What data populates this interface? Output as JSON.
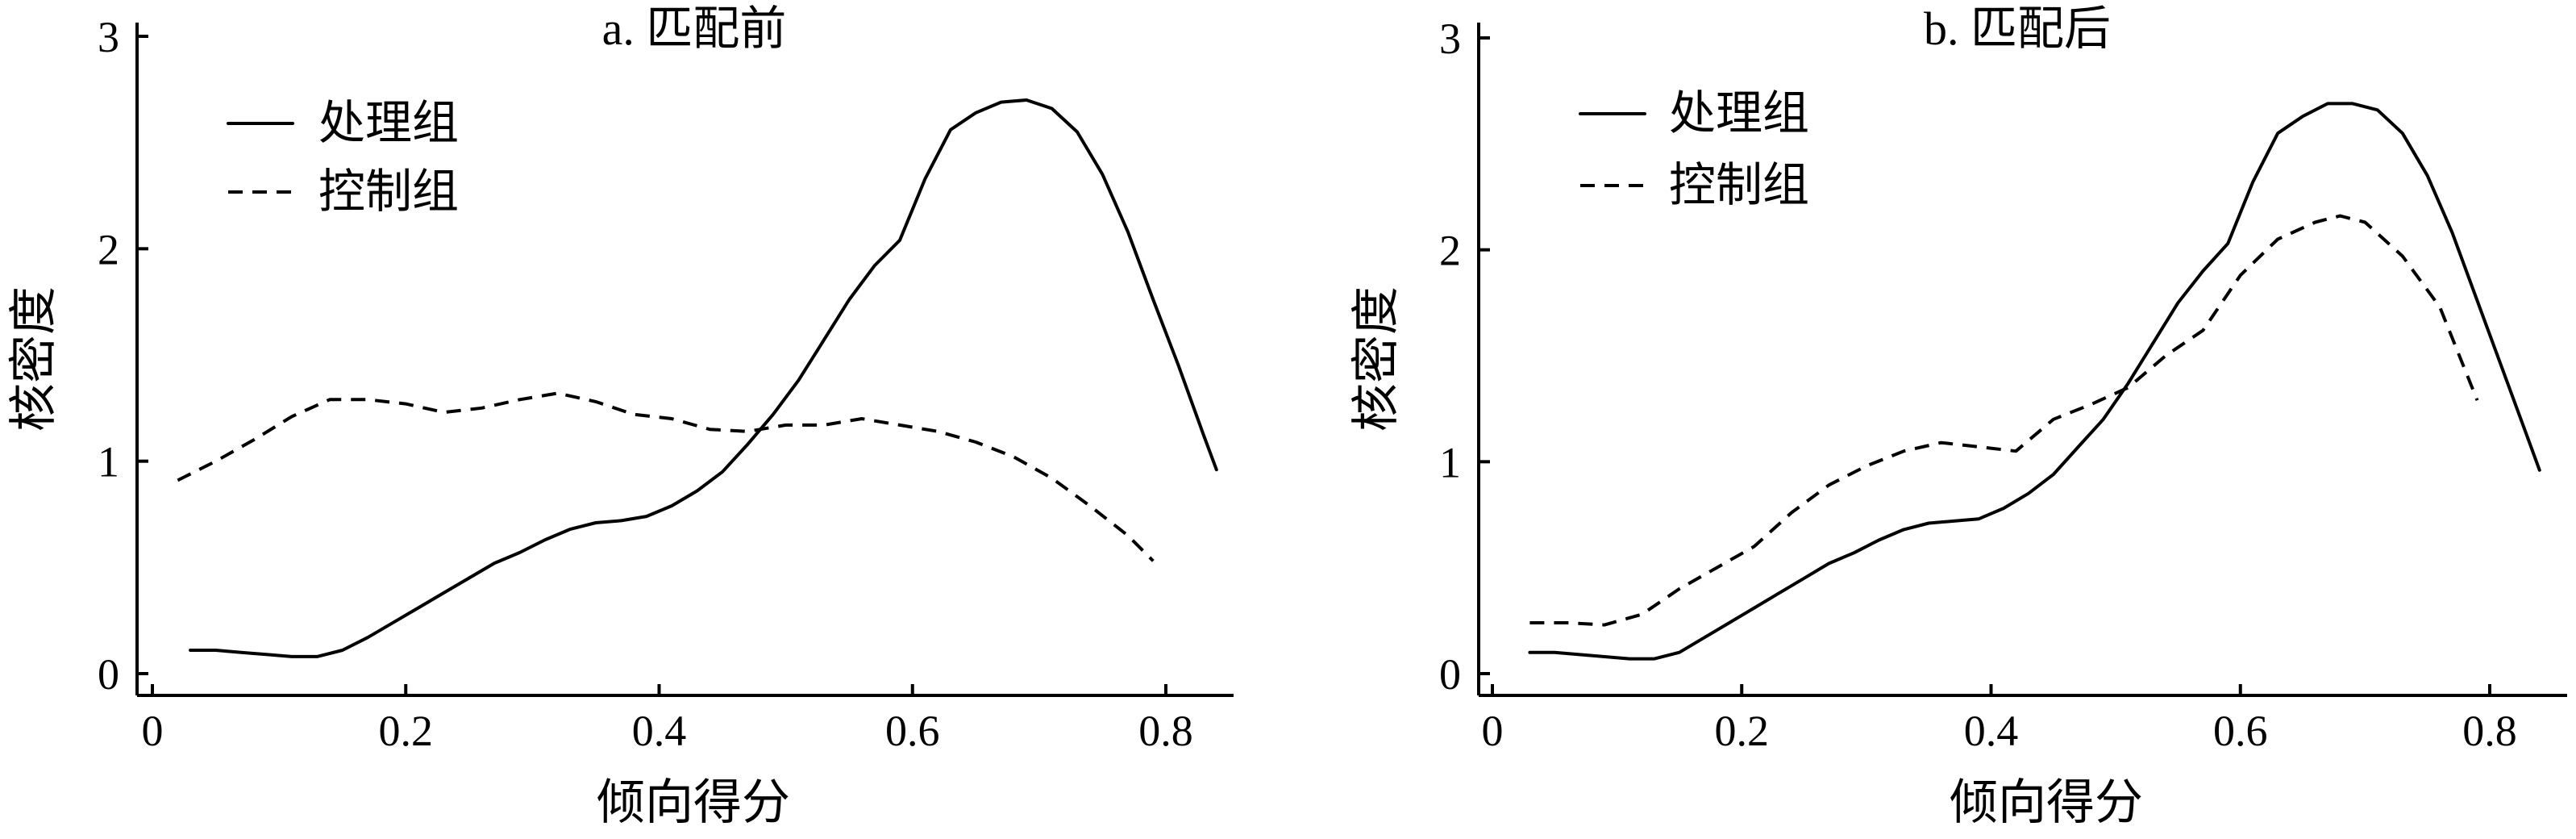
{
  "chart_data": [
    {
      "type": "line",
      "title": "a. 匹配前",
      "xlabel": "倾向得分",
      "ylabel": "核密度",
      "xlim": [
        -0.01,
        0.85
      ],
      "ylim": [
        -0.1,
        3.05
      ],
      "xticks": [
        0,
        0.2,
        0.4,
        0.6,
        0.8
      ],
      "xtick_labels": [
        "0",
        "0.2",
        "0.4",
        "0.6",
        "0.8"
      ],
      "yticks": [
        0,
        1,
        2,
        3
      ],
      "ytick_labels": [
        "0",
        "1",
        "2",
        "3"
      ],
      "legend_position": "top-left",
      "grid": false,
      "series": [
        {
          "name": "处理组",
          "style": "solid",
          "x": [
            0.03,
            0.05,
            0.07,
            0.09,
            0.11,
            0.13,
            0.15,
            0.17,
            0.19,
            0.21,
            0.23,
            0.25,
            0.27,
            0.29,
            0.31,
            0.33,
            0.35,
            0.37,
            0.39,
            0.41,
            0.43,
            0.45,
            0.47,
            0.49,
            0.51,
            0.53,
            0.55,
            0.57,
            0.59,
            0.61,
            0.63,
            0.65,
            0.67,
            0.69,
            0.71,
            0.73,
            0.75,
            0.77,
            0.79,
            0.81,
            0.83,
            0.84
          ],
          "y": [
            0.11,
            0.11,
            0.1,
            0.09,
            0.08,
            0.08,
            0.11,
            0.17,
            0.24,
            0.31,
            0.38,
            0.45,
            0.52,
            0.57,
            0.63,
            0.68,
            0.71,
            0.72,
            0.74,
            0.79,
            0.86,
            0.95,
            1.08,
            1.22,
            1.38,
            1.57,
            1.76,
            1.92,
            2.04,
            2.33,
            2.56,
            2.64,
            2.69,
            2.7,
            2.66,
            2.55,
            2.35,
            2.08,
            1.76,
            1.45,
            1.12,
            0.96
          ]
        },
        {
          "name": "控制组",
          "style": "dashed",
          "x": [
            0.02,
            0.05,
            0.08,
            0.11,
            0.14,
            0.17,
            0.2,
            0.23,
            0.26,
            0.29,
            0.32,
            0.35,
            0.38,
            0.41,
            0.44,
            0.47,
            0.5,
            0.53,
            0.56,
            0.59,
            0.62,
            0.65,
            0.68,
            0.71,
            0.74,
            0.77,
            0.79
          ],
          "y": [
            0.91,
            1.0,
            1.1,
            1.21,
            1.29,
            1.29,
            1.27,
            1.23,
            1.25,
            1.29,
            1.32,
            1.28,
            1.22,
            1.2,
            1.15,
            1.14,
            1.17,
            1.17,
            1.2,
            1.17,
            1.14,
            1.09,
            1.02,
            0.92,
            0.79,
            0.65,
            0.53
          ]
        }
      ]
    },
    {
      "type": "line",
      "title": "b. 匹配后",
      "xlabel": "倾向得分",
      "ylabel": "核密度",
      "xlim": [
        -0.01,
        0.85
      ],
      "ylim": [
        -0.1,
        3.05
      ],
      "xticks": [
        0,
        0.2,
        0.4,
        0.6,
        0.8
      ],
      "xtick_labels": [
        "0",
        "0.2",
        "0.4",
        "0.6",
        "0.8"
      ],
      "yticks": [
        0,
        1,
        2,
        3
      ],
      "ytick_labels": [
        "0",
        "1",
        "2",
        "3"
      ],
      "legend_position": "top-left",
      "grid": false,
      "series": [
        {
          "name": "处理组",
          "style": "solid",
          "x": [
            0.03,
            0.05,
            0.07,
            0.09,
            0.11,
            0.13,
            0.15,
            0.17,
            0.19,
            0.21,
            0.23,
            0.25,
            0.27,
            0.29,
            0.31,
            0.33,
            0.35,
            0.37,
            0.39,
            0.41,
            0.43,
            0.45,
            0.47,
            0.49,
            0.51,
            0.53,
            0.55,
            0.57,
            0.59,
            0.61,
            0.63,
            0.65,
            0.67,
            0.69,
            0.71,
            0.73,
            0.75,
            0.77,
            0.79,
            0.81,
            0.83,
            0.84
          ],
          "y": [
            0.1,
            0.1,
            0.09,
            0.08,
            0.07,
            0.07,
            0.1,
            0.17,
            0.24,
            0.31,
            0.38,
            0.45,
            0.52,
            0.57,
            0.63,
            0.68,
            0.71,
            0.72,
            0.73,
            0.78,
            0.85,
            0.94,
            1.07,
            1.2,
            1.37,
            1.56,
            1.75,
            1.9,
            2.03,
            2.32,
            2.55,
            2.63,
            2.69,
            2.69,
            2.66,
            2.55,
            2.35,
            2.08,
            1.76,
            1.44,
            1.12,
            0.96
          ]
        },
        {
          "name": "控制组",
          "style": "dashed",
          "x": [
            0.03,
            0.06,
            0.09,
            0.12,
            0.15,
            0.18,
            0.21,
            0.24,
            0.27,
            0.3,
            0.33,
            0.36,
            0.39,
            0.42,
            0.45,
            0.48,
            0.51,
            0.54,
            0.57,
            0.6,
            0.63,
            0.66,
            0.68,
            0.7,
            0.73,
            0.76,
            0.79
          ],
          "y": [
            0.24,
            0.24,
            0.23,
            0.28,
            0.4,
            0.5,
            0.6,
            0.76,
            0.89,
            0.98,
            1.05,
            1.09,
            1.07,
            1.05,
            1.2,
            1.27,
            1.35,
            1.5,
            1.62,
            1.88,
            2.05,
            2.13,
            2.16,
            2.13,
            1.97,
            1.73,
            1.29
          ]
        }
      ]
    }
  ]
}
